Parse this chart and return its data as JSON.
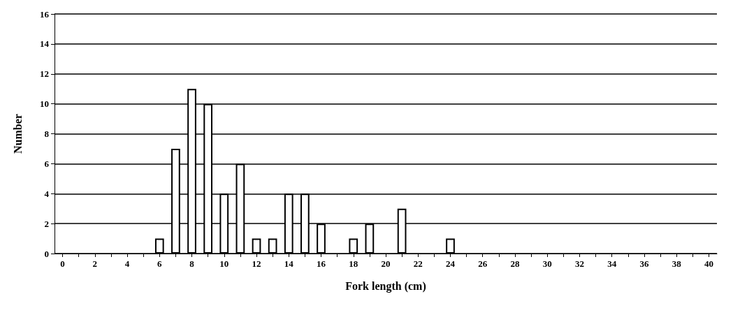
{
  "chart_data": {
    "type": "bar",
    "xlabel": "Fork length (cm)",
    "ylabel": "Number",
    "categories": [
      "0",
      null,
      "2",
      null,
      "4",
      null,
      "6",
      null,
      "8",
      null,
      "10",
      null,
      "12",
      null,
      "14",
      null,
      "16",
      null,
      "18",
      null,
      "20",
      null,
      "22",
      null,
      "24",
      null,
      "26",
      null,
      "28",
      null,
      "30",
      null,
      "32",
      null,
      "34",
      null,
      "36",
      null,
      "38",
      null,
      "40"
    ],
    "values": [
      0,
      0,
      0,
      0,
      0,
      0,
      1,
      7,
      11,
      10,
      4,
      6,
      1,
      1,
      4,
      4,
      2,
      0,
      1,
      2,
      0,
      3,
      0,
      0,
      1,
      0,
      0,
      0,
      0,
      0,
      0,
      0,
      0,
      0,
      0,
      0,
      0,
      0,
      0,
      0,
      0
    ],
    "color": "#ffffff",
    "ylim": [
      0,
      16
    ],
    "yticks": [
      0,
      2,
      4,
      6,
      8,
      10,
      12,
      14,
      16
    ],
    "grid": "y"
  }
}
